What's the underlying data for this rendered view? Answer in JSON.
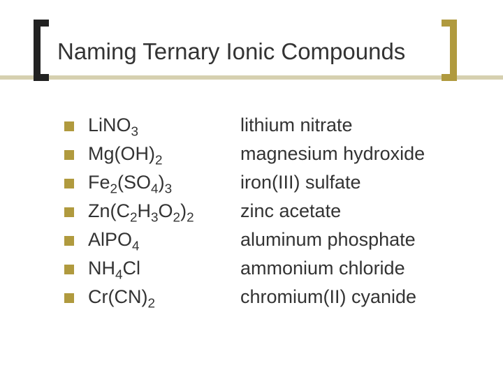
{
  "slide": {
    "title": "Naming Ternary Ionic Compounds",
    "background_color": "#ffffff",
    "text_color": "#333333",
    "accent_color": "#b09a3e",
    "rule_color": "#d6d0b0",
    "bracket_left_color": "#222222",
    "title_fontsize": 33,
    "body_fontsize": 27
  },
  "compounds": [
    {
      "formula_html": "LiNO<sub>3</sub>",
      "name": "lithium nitrate"
    },
    {
      "formula_html": "Mg(OH)<sub>2</sub>",
      "name": "magnesium hydroxide"
    },
    {
      "formula_html": "Fe<sub>2</sub>(SO<sub>4</sub>)<sub>3</sub>",
      "name": "iron(III) sulfate"
    },
    {
      "formula_html": "Zn(C<sub>2</sub>H<sub>3</sub>O<sub>2</sub>)<sub>2</sub>",
      "name": "zinc acetate"
    },
    {
      "formula_html": "AlPO<sub>4</sub>",
      "name": "aluminum phosphate"
    },
    {
      "formula_html": "NH<sub>4</sub>Cl",
      "name": "ammonium chloride"
    },
    {
      "formula_html": "Cr(CN)<sub>2</sub>",
      "name": "chromium(II) cyanide"
    }
  ]
}
